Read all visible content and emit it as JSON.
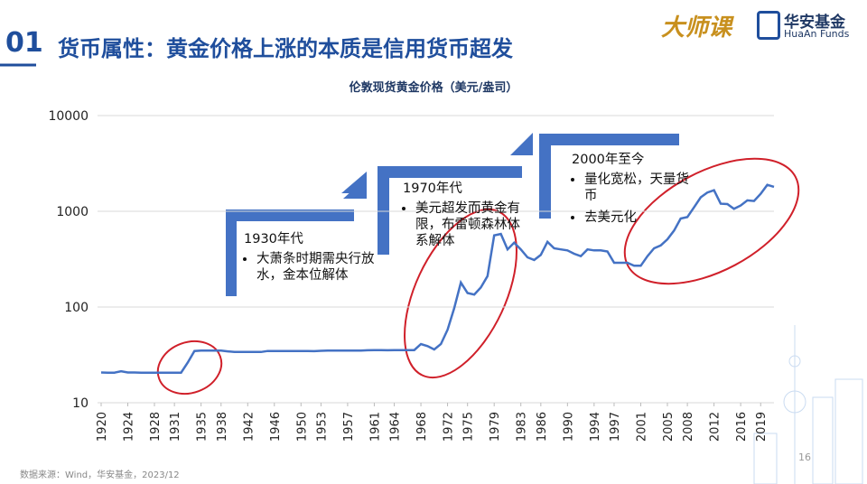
{
  "slide": {
    "section_number": "01",
    "title": "货币属性：黄金价格上涨的本质是信用货币超发",
    "logo_brand": "大师课",
    "logo_cn": "华安基金",
    "logo_en": "HuaAn Funds",
    "source": "数据来源：Wind，华安基金，2023/12",
    "page_number": "16"
  },
  "annotations": [
    {
      "heading": "1930年代",
      "bullets": [
        "大萧条时期需央行放水，金本位解体"
      ]
    },
    {
      "heading": "1970年代",
      "bullets": [
        "美元超发而黄金有限，布雷顿森林体系解体"
      ]
    },
    {
      "heading": "2000年至今",
      "bullets": [
        "量化宽松，天量货币",
        "去美元化"
      ]
    }
  ],
  "chart_data": {
    "type": "line",
    "title": "伦敦现货黄金价格（美元/盎司）",
    "color": "#4472c4",
    "log_scale": true,
    "grid": true,
    "x": [
      1920,
      1921,
      1922,
      1923,
      1924,
      1925,
      1926,
      1927,
      1928,
      1929,
      1930,
      1931,
      1932,
      1933,
      1934,
      1935,
      1936,
      1937,
      1938,
      1939,
      1940,
      1941,
      1942,
      1943,
      1944,
      1945,
      1946,
      1947,
      1948,
      1949,
      1950,
      1951,
      1952,
      1953,
      1954,
      1955,
      1956,
      1957,
      1958,
      1959,
      1960,
      1961,
      1962,
      1963,
      1964,
      1965,
      1966,
      1967,
      1968,
      1969,
      1970,
      1971,
      1972,
      1973,
      1974,
      1975,
      1976,
      1977,
      1978,
      1979,
      1980,
      1981,
      1982,
      1983,
      1984,
      1985,
      1986,
      1987,
      1988,
      1989,
      1990,
      1991,
      1992,
      1993,
      1994,
      1995,
      1996,
      1997,
      1998,
      1999,
      2000,
      2001,
      2002,
      2003,
      2004,
      2005,
      2006,
      2007,
      2008,
      2009,
      2010,
      2011,
      2012,
      2013,
      2014,
      2015,
      2016,
      2017,
      2018,
      2019,
      2020,
      2021
    ],
    "values": [
      20.7,
      20.6,
      20.6,
      21.3,
      20.7,
      20.7,
      20.6,
      20.6,
      20.6,
      20.6,
      20.6,
      20.6,
      20.6,
      26.3,
      34.7,
      35.0,
      35.1,
      35.1,
      35.0,
      34.4,
      33.9,
      33.9,
      33.9,
      33.9,
      33.9,
      34.7,
      34.7,
      34.7,
      34.7,
      34.7,
      34.7,
      34.7,
      34.6,
      34.9,
      35.0,
      35.0,
      35.0,
      35.0,
      35.1,
      35.1,
      35.3,
      35.5,
      35.4,
      35.3,
      35.4,
      35.4,
      35.4,
      35.5,
      41,
      39,
      36,
      41,
      58,
      97,
      180,
      140,
      135,
      160,
      210,
      560,
      580,
      400,
      470,
      400,
      330,
      310,
      350,
      480,
      410,
      400,
      390,
      360,
      340,
      400,
      390,
      390,
      380,
      290,
      290,
      290,
      270,
      270,
      340,
      410,
      440,
      510,
      630,
      840,
      870,
      1100,
      1400,
      1570,
      1660,
      1200,
      1190,
      1060,
      1150,
      1300,
      1280,
      1520,
      1890,
      1800
    ],
    "xlim": [
      1920,
      2021
    ],
    "xticks": [
      1920,
      1924,
      1928,
      1931,
      1935,
      1938,
      1942,
      1946,
      1950,
      1953,
      1957,
      1961,
      1964,
      1968,
      1972,
      1975,
      1979,
      1983,
      1986,
      1990,
      1994,
      1997,
      2001,
      2005,
      2008,
      2012,
      2016,
      2019
    ],
    "ylim": [
      10,
      10000
    ],
    "yticks": [
      10,
      100,
      1000,
      10000
    ]
  }
}
